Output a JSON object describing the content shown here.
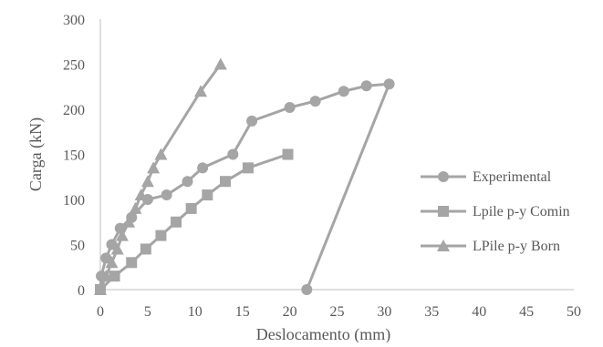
{
  "chart_data": {
    "type": "scatter",
    "title": "",
    "xlabel": "Deslocamento (mm)",
    "ylabel": "Carga (kN)",
    "xlim": [
      0,
      50
    ],
    "ylim": [
      0,
      300
    ],
    "x_ticks": [
      0,
      5,
      10,
      15,
      20,
      25,
      30,
      35,
      40,
      45,
      50
    ],
    "y_ticks": [
      0,
      50,
      100,
      150,
      200,
      250,
      300
    ],
    "grid": false,
    "legend_position": "right",
    "series": [
      {
        "name": "Experimental",
        "marker": "circle",
        "color": "#a5a5a5",
        "points": [
          [
            0,
            0
          ],
          [
            0.1,
            15
          ],
          [
            0.6,
            35
          ],
          [
            1.2,
            50
          ],
          [
            2.1,
            68
          ],
          [
            3.3,
            80
          ],
          [
            5.0,
            100
          ],
          [
            7.0,
            105
          ],
          [
            9.2,
            120
          ],
          [
            10.8,
            135
          ],
          [
            14.0,
            150
          ],
          [
            16.0,
            187
          ],
          [
            20.0,
            202
          ],
          [
            22.7,
            209
          ],
          [
            25.7,
            220
          ],
          [
            28.1,
            226
          ],
          [
            30.5,
            228
          ],
          [
            21.8,
            0
          ]
        ]
      },
      {
        "name": "Lpile p-y Comin",
        "marker": "square",
        "color": "#a5a5a5",
        "points": [
          [
            0,
            0
          ],
          [
            1.5,
            15
          ],
          [
            3.3,
            30
          ],
          [
            4.8,
            45
          ],
          [
            6.4,
            60
          ],
          [
            8.0,
            75
          ],
          [
            9.6,
            90
          ],
          [
            11.3,
            105
          ],
          [
            13.2,
            120
          ],
          [
            15.6,
            135
          ],
          [
            19.8,
            150
          ]
        ]
      },
      {
        "name": "LPile p-y Born",
        "marker": "triangle",
        "color": "#a5a5a5",
        "points": [
          [
            0,
            0
          ],
          [
            0.6,
            15
          ],
          [
            1.2,
            30
          ],
          [
            1.8,
            45
          ],
          [
            2.3,
            60
          ],
          [
            3.0,
            75
          ],
          [
            3.7,
            90
          ],
          [
            4.3,
            105
          ],
          [
            5.0,
            120
          ],
          [
            5.6,
            135
          ],
          [
            6.4,
            150
          ],
          [
            10.6,
            220
          ],
          [
            12.7,
            250
          ]
        ]
      }
    ]
  }
}
